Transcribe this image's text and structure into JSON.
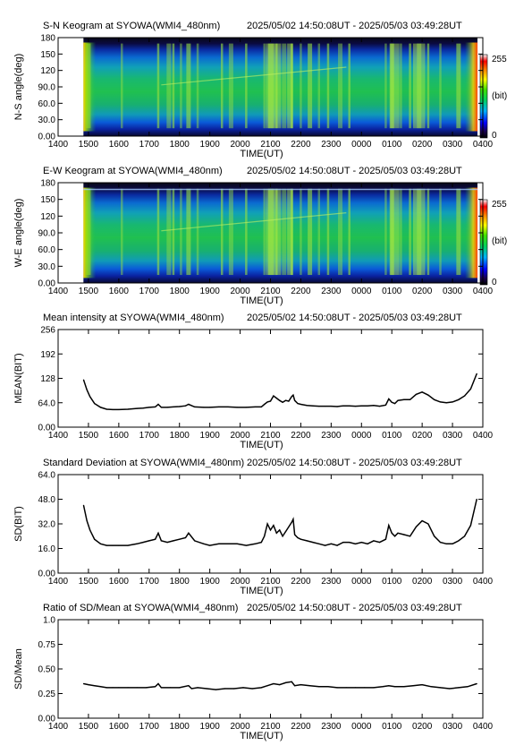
{
  "figure": {
    "time_axis": {
      "ticks": [
        "1400",
        "1500",
        "1600",
        "1700",
        "1800",
        "1900",
        "2000",
        "2100",
        "2200",
        "2300",
        "0000",
        "0100",
        "0200",
        "0300",
        "0400"
      ],
      "label": "TIME(UT)"
    }
  },
  "chart_data": [
    {
      "type": "heatmap",
      "title": "S-N Keogram at SYOWA(WMI4_480nm)",
      "time_range": "2025/05/02 14:50:08UT - 2025/05/03 03:49:28UT",
      "xlabel": "TIME(UT)",
      "ylabel": "N-S angle(deg)",
      "xlim": [
        14.0,
        28.0
      ],
      "ylim": [
        0,
        180
      ],
      "y_ticks": [
        "0.00",
        "30.0",
        "60.0",
        "90.0",
        "120",
        "150",
        "180"
      ],
      "colorbar": {
        "min": "0",
        "max": "255",
        "unit": "(bit)",
        "colormap": "rainbow"
      },
      "data_range": [
        14.835,
        27.824
      ],
      "bright_times": [
        15.0,
        16.1,
        17.3,
        17.65,
        17.8,
        18.05,
        18.3,
        18.6,
        19.4,
        19.7,
        20.2,
        20.8,
        21.0,
        21.1,
        21.2,
        21.45,
        21.7,
        22.0,
        22.3,
        22.6,
        22.9,
        23.3,
        23.6,
        24.8,
        25.0,
        25.3,
        25.6,
        25.9,
        26.2,
        26.6,
        27.2
      ]
    },
    {
      "type": "heatmap",
      "title": "E-W Keogram at SYOWA(WMI4_480nm)",
      "time_range": "2025/05/02 14:50:08UT - 2025/05/03 03:49:28UT",
      "xlabel": "TIME(UT)",
      "ylabel": "W-E angle(deg)",
      "xlim": [
        14.0,
        28.0
      ],
      "ylim": [
        0,
        180
      ],
      "y_ticks": [
        "0.00",
        "30.0",
        "60.0",
        "90.0",
        "120",
        "150",
        "180"
      ],
      "colorbar": {
        "min": "0",
        "max": "255",
        "unit": "(bit)",
        "colormap": "rainbow"
      },
      "data_range": [
        14.835,
        27.824
      ],
      "bright_times": [
        15.0,
        16.1,
        17.3,
        17.65,
        17.8,
        18.05,
        18.3,
        18.6,
        19.4,
        19.7,
        20.2,
        20.8,
        21.0,
        21.1,
        21.2,
        21.45,
        21.7,
        22.0,
        22.3,
        22.6,
        22.9,
        23.3,
        23.6,
        24.8,
        25.0,
        25.3,
        25.6,
        25.9,
        26.2,
        26.6,
        27.2
      ]
    },
    {
      "type": "line",
      "title": "Mean intensity at SYOWA(WMI4_480nm)",
      "time_range": "2025/05/02 14:50:08UT - 2025/05/03 03:49:28UT",
      "xlabel": "TIME(UT)",
      "ylabel": "MEAN(BIT)",
      "xlim": [
        14.0,
        28.0
      ],
      "ylim": [
        0,
        256
      ],
      "y_ticks": [
        "0.00",
        "64.0",
        "128",
        "192",
        "256"
      ],
      "series": [
        {
          "x": [
            14.84,
            14.95,
            15.05,
            15.2,
            15.4,
            15.6,
            15.8,
            16.0,
            16.3,
            16.6,
            16.8,
            17.0,
            17.2,
            17.3,
            17.4,
            17.6,
            17.8,
            18.0,
            18.2,
            18.3,
            18.5,
            18.8,
            19.0,
            19.3,
            19.6,
            19.9,
            20.2,
            20.5,
            20.7,
            20.8,
            20.9,
            21.0,
            21.1,
            21.2,
            21.3,
            21.4,
            21.5,
            21.6,
            21.7,
            21.75,
            21.8,
            21.9,
            22.0,
            22.2,
            22.4,
            22.6,
            22.8,
            23.0,
            23.2,
            23.4,
            23.6,
            23.8,
            24.0,
            24.2,
            24.4,
            24.6,
            24.8,
            24.9,
            25.0,
            25.1,
            25.2,
            25.4,
            25.6,
            25.8,
            26.0,
            26.2,
            26.4,
            26.6,
            26.8,
            27.0,
            27.2,
            27.4,
            27.6,
            27.8
          ],
          "y": [
            124,
            98,
            80,
            62,
            52,
            47,
            46,
            46,
            47,
            49,
            50,
            52,
            53,
            60,
            52,
            52,
            53,
            54,
            56,
            60,
            53,
            52,
            52,
            53,
            53,
            52,
            52,
            53,
            53,
            60,
            66,
            68,
            82,
            76,
            70,
            65,
            70,
            68,
            80,
            84,
            70,
            62,
            60,
            57,
            56,
            55,
            55,
            55,
            54,
            56,
            56,
            55,
            56,
            56,
            57,
            55,
            58,
            74,
            65,
            62,
            70,
            72,
            72,
            86,
            92,
            84,
            72,
            66,
            64,
            66,
            72,
            82,
            100,
            140
          ]
        }
      ]
    },
    {
      "type": "line",
      "title": "Standard Deviation at SYOWA(WMI4_480nm)",
      "time_range": "2025/05/02 14:50:08UT - 2025/05/03 03:49:28UT",
      "xlabel": "TIME(UT)",
      "ylabel": "SD(BIT)",
      "xlim": [
        14.0,
        28.0
      ],
      "ylim": [
        0,
        64
      ],
      "y_ticks": [
        "0.00",
        "16.0",
        "32.0",
        "48.0",
        "64.0"
      ],
      "series": [
        {
          "x": [
            14.84,
            14.95,
            15.05,
            15.2,
            15.4,
            15.6,
            15.8,
            16.0,
            16.3,
            16.6,
            16.8,
            17.0,
            17.2,
            17.3,
            17.4,
            17.6,
            17.8,
            18.0,
            18.2,
            18.3,
            18.5,
            18.8,
            19.0,
            19.3,
            19.6,
            19.9,
            20.2,
            20.5,
            20.7,
            20.8,
            20.9,
            21.0,
            21.1,
            21.2,
            21.3,
            21.4,
            21.5,
            21.6,
            21.7,
            21.75,
            21.8,
            21.9,
            22.0,
            22.2,
            22.4,
            22.6,
            22.8,
            23.0,
            23.2,
            23.4,
            23.6,
            23.8,
            24.0,
            24.2,
            24.4,
            24.6,
            24.8,
            24.9,
            25.0,
            25.1,
            25.2,
            25.4,
            25.6,
            25.8,
            26.0,
            26.2,
            26.4,
            26.6,
            26.8,
            27.0,
            27.2,
            27.4,
            27.6,
            27.8
          ],
          "y": [
            44,
            34,
            28,
            22,
            19,
            18,
            18,
            18,
            18,
            19,
            20,
            21,
            22,
            26,
            21,
            20,
            21,
            22,
            23,
            26,
            21,
            19,
            18,
            19,
            19,
            19,
            18,
            19,
            20,
            24,
            32,
            28,
            31,
            26,
            28,
            24,
            27,
            30,
            33,
            35,
            25,
            23,
            22,
            21,
            20,
            19,
            18,
            19,
            18,
            20,
            20,
            19,
            20,
            19,
            21,
            20,
            22,
            31,
            26,
            24,
            26,
            25,
            24,
            30,
            34,
            32,
            24,
            20,
            19,
            19,
            21,
            24,
            31,
            48
          ]
        }
      ]
    },
    {
      "type": "line",
      "title": "Ratio of SD/Mean at SYOWA(WMI4_480nm)",
      "time_range": "2025/05/02 14:50:08UT - 2025/05/03 03:49:28UT",
      "xlabel": "TIME(UT)",
      "ylabel": "SD/Mean",
      "xlim": [
        14.0,
        28.0
      ],
      "ylim": [
        0,
        1.0
      ],
      "y_ticks": [
        "0.00",
        "0.25",
        "0.50",
        "0.75",
        "1.0"
      ],
      "series": [
        {
          "x": [
            14.84,
            15.0,
            15.2,
            15.4,
            15.6,
            15.8,
            16.0,
            16.3,
            16.6,
            16.9,
            17.2,
            17.3,
            17.4,
            17.7,
            18.0,
            18.3,
            18.4,
            18.6,
            18.9,
            19.2,
            19.5,
            19.8,
            20.1,
            20.4,
            20.7,
            20.9,
            21.1,
            21.3,
            21.5,
            21.7,
            21.8,
            22.0,
            22.3,
            22.6,
            22.9,
            23.2,
            23.5,
            23.8,
            24.1,
            24.4,
            24.7,
            24.9,
            25.1,
            25.4,
            25.7,
            26.0,
            26.3,
            26.6,
            26.9,
            27.2,
            27.5,
            27.8
          ],
          "y": [
            0.35,
            0.34,
            0.33,
            0.32,
            0.31,
            0.31,
            0.31,
            0.31,
            0.31,
            0.31,
            0.32,
            0.35,
            0.31,
            0.31,
            0.31,
            0.33,
            0.3,
            0.31,
            0.3,
            0.29,
            0.3,
            0.3,
            0.31,
            0.3,
            0.31,
            0.33,
            0.35,
            0.34,
            0.36,
            0.37,
            0.33,
            0.34,
            0.33,
            0.32,
            0.32,
            0.31,
            0.31,
            0.31,
            0.31,
            0.31,
            0.32,
            0.33,
            0.32,
            0.32,
            0.33,
            0.34,
            0.32,
            0.31,
            0.3,
            0.31,
            0.32,
            0.35
          ]
        }
      ]
    }
  ]
}
